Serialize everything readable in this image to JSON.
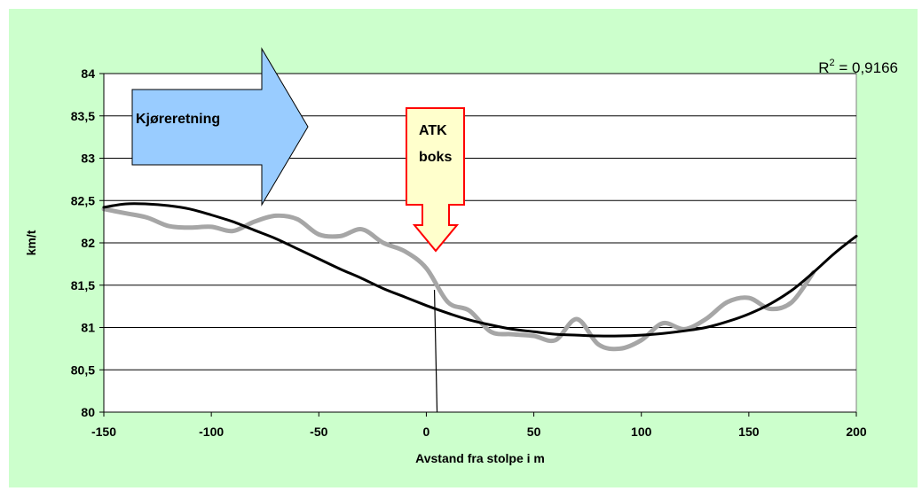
{
  "chart_data": {
    "type": "line",
    "xlabel": "Avstand fra stolpe i m",
    "ylabel": "km/t",
    "xlim": [
      -150,
      200
    ],
    "ylim": [
      80,
      84
    ],
    "x_ticks": [
      "-150",
      "-100",
      "-50",
      "0",
      "50",
      "100",
      "150",
      "200"
    ],
    "y_ticks": [
      "80",
      "80,5",
      "81",
      "81,5",
      "82",
      "82,5",
      "83",
      "83,5",
      "84"
    ],
    "grid": "horizontal",
    "r_squared_label": "R",
    "r_squared_sup": "2",
    "r_squared_value": " = 0,9166",
    "series": [
      {
        "color": "#a6a6a6",
        "x": [
          -150,
          -140,
          -130,
          -120,
          -110,
          -100,
          -90,
          -80,
          -70,
          -60,
          -50,
          -40,
          -30,
          -20,
          -10,
          0,
          10,
          20,
          30,
          40,
          50,
          60,
          70,
          80,
          90,
          100,
          110,
          120,
          130,
          140,
          150,
          160,
          170,
          180
        ],
        "values": [
          82.4,
          82.35,
          82.3,
          82.2,
          82.18,
          82.19,
          82.14,
          82.25,
          82.32,
          82.28,
          82.1,
          82.08,
          82.16,
          82.0,
          81.9,
          81.7,
          81.3,
          81.2,
          80.95,
          80.92,
          80.9,
          80.85,
          81.1,
          80.8,
          80.75,
          80.85,
          81.05,
          80.98,
          81.1,
          81.3,
          81.35,
          81.22,
          81.3,
          81.65
        ]
      },
      {
        "color": "#000000",
        "x": [
          -150,
          -140,
          -130,
          -120,
          -110,
          -100,
          -90,
          -80,
          -70,
          -60,
          -50,
          -40,
          -30,
          -20,
          -10,
          0,
          10,
          20,
          30,
          40,
          50,
          60,
          70,
          80,
          90,
          100,
          110,
          120,
          130,
          140,
          150,
          160,
          170,
          180,
          190,
          200
        ],
        "values": [
          82.42,
          82.46,
          82.46,
          82.44,
          82.4,
          82.33,
          82.25,
          82.15,
          82.05,
          81.93,
          81.81,
          81.69,
          81.58,
          81.46,
          81.36,
          81.26,
          81.17,
          81.09,
          81.03,
          80.98,
          80.95,
          80.92,
          80.91,
          80.9,
          80.9,
          80.91,
          80.93,
          80.96,
          81.0,
          81.07,
          81.16,
          81.28,
          81.44,
          81.65,
          81.88,
          82.08
        ]
      }
    ],
    "marker_x": 5,
    "annotations": {
      "direction_label": "Kjøreretning",
      "atk_line1": "ATK",
      "atk_line2": "boks"
    },
    "colors": {
      "background": "#ccffcc",
      "plot_area": "#ffffff",
      "arrow_fill": "#99ccff",
      "atk_fill": "#ffffcc",
      "atk_border": "#ff0000"
    }
  }
}
